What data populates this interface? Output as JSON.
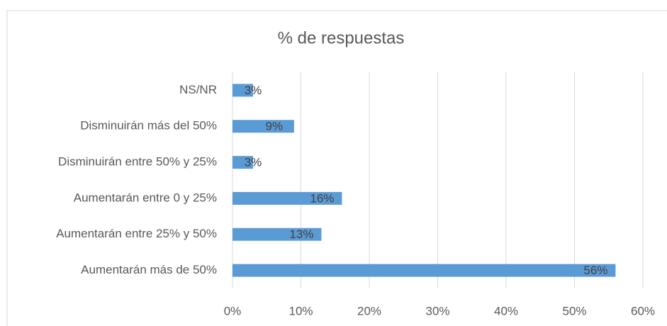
{
  "chart_data": {
    "type": "barh",
    "title": "% de respuestas",
    "categories": [
      "NS/NR",
      "Disminuirán más del 50%",
      "Disminuirán entre 50% y 25%",
      "Aumentarán entre 0 y 25%",
      "Aumentarán entre 25% y 50%",
      "Aumentarán más de 50%"
    ],
    "values": [
      3,
      9,
      3,
      16,
      13,
      56
    ],
    "value_labels": [
      "3%",
      "9%",
      "3%",
      "16%",
      "13%",
      "56%"
    ],
    "color": "#5b9bd5",
    "xlim": [
      0,
      60
    ],
    "xticks": [
      {
        "value": 0,
        "label": "0%"
      },
      {
        "value": 10,
        "label": "10%"
      },
      {
        "value": 20,
        "label": "20%"
      },
      {
        "value": 30,
        "label": "30%"
      },
      {
        "value": 40,
        "label": "40%"
      },
      {
        "value": 50,
        "label": "50%"
      },
      {
        "value": 60,
        "label": "60%"
      }
    ],
    "grid": true
  }
}
